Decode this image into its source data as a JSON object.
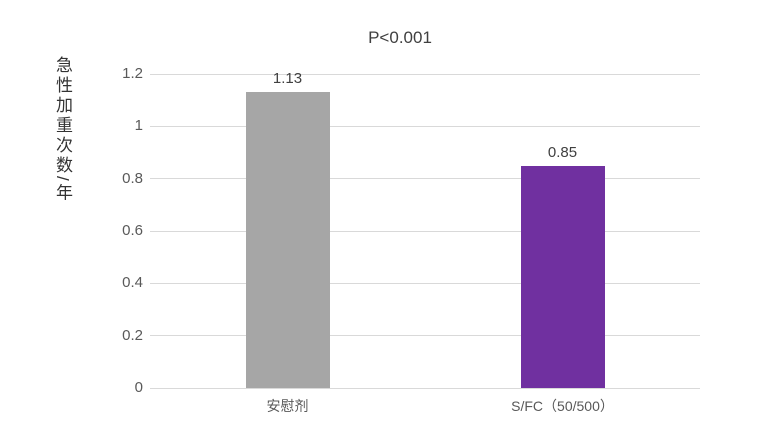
{
  "chart_data": {
    "type": "bar",
    "title": "P<0.001",
    "xlabel": "",
    "ylabel": "急性加重次数/年",
    "categories": [
      "安慰剂",
      "S/FC（50/500）"
    ],
    "values": [
      1.13,
      0.85
    ],
    "value_labels": [
      "1.13",
      "0.85"
    ],
    "bar_colors": [
      "#a6a6a6",
      "#7030a0"
    ],
    "ylim": [
      0,
      1.2
    ],
    "yticks": [
      0,
      0.2,
      0.4,
      0.6,
      0.8,
      1,
      1.2
    ],
    "ytick_labels": [
      "0",
      "0.2",
      "0.4",
      "0.6",
      "0.8",
      "1",
      "1.2"
    ],
    "grid": true,
    "gridline_color": "#d9d9d9",
    "legend": "none",
    "background": "#ffffff"
  }
}
